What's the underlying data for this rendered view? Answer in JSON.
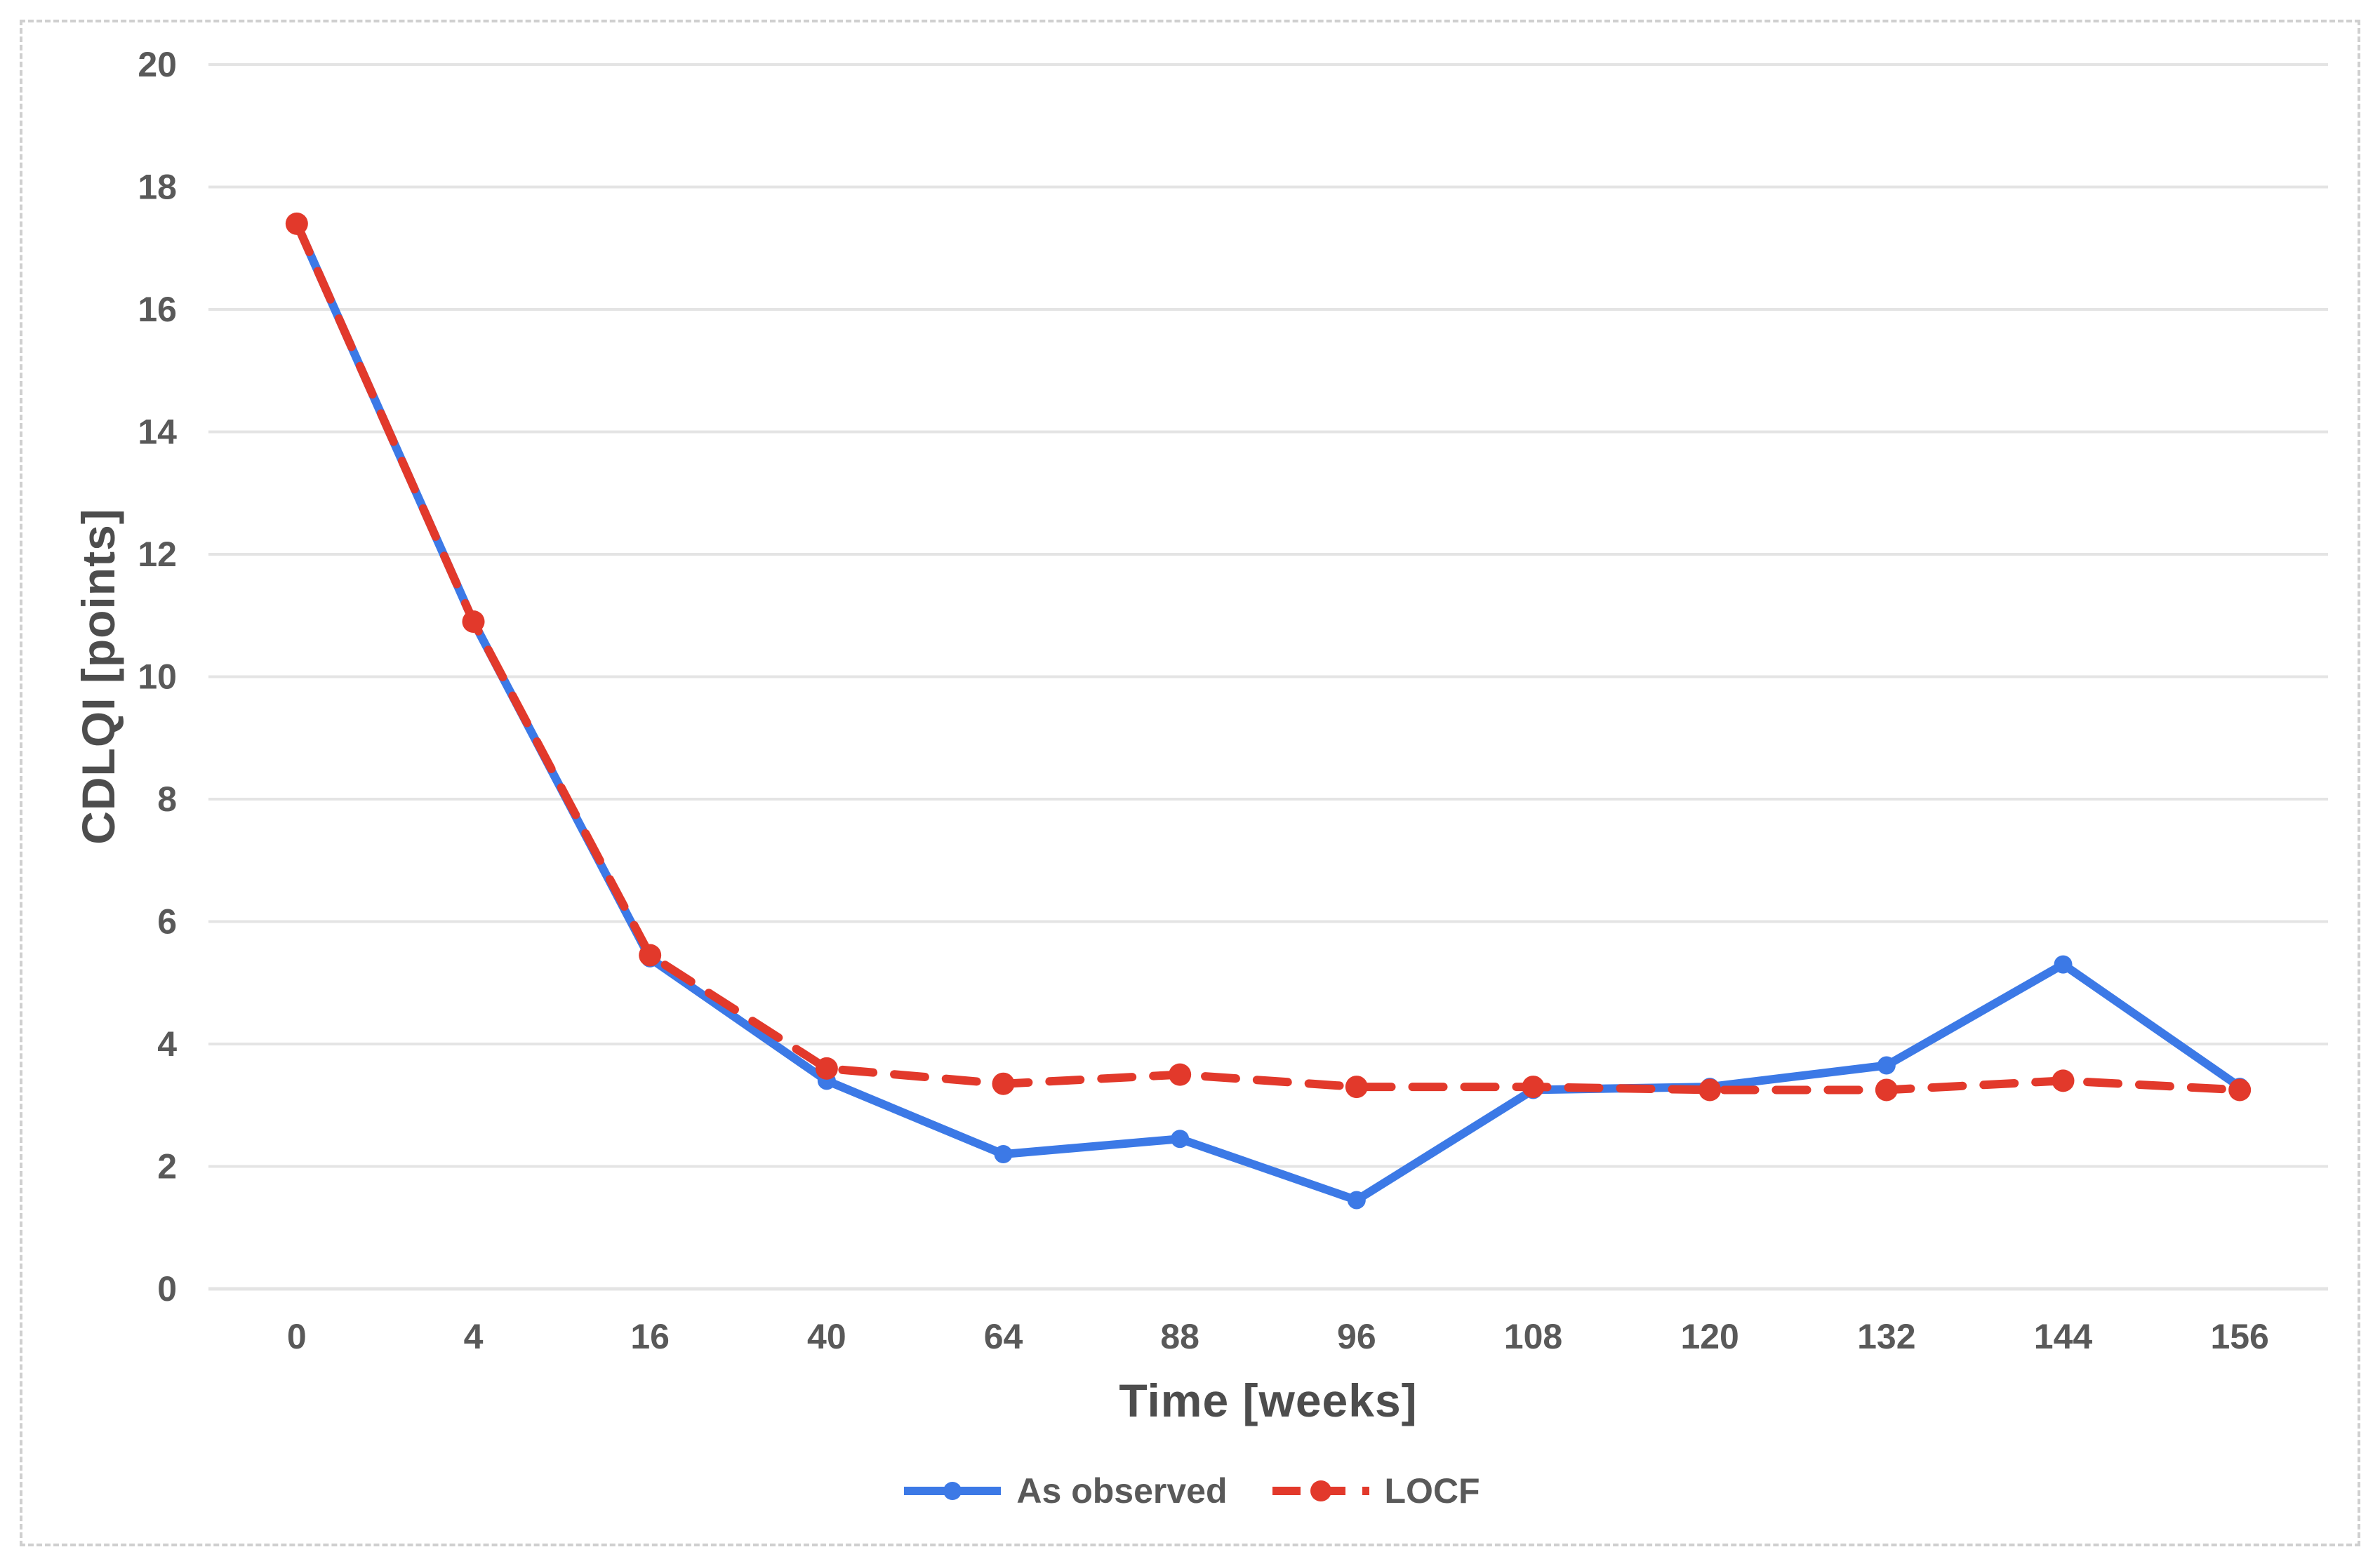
{
  "figure": {
    "background_color": "#ffffff",
    "border_color": "#cfcfcf"
  },
  "chart_data": {
    "type": "line",
    "title": "",
    "xlabel": "Time [weeks]",
    "ylabel": "CDLQI [points]",
    "categories": [
      "0",
      "4",
      "16",
      "40",
      "64",
      "88",
      "96",
      "108",
      "120",
      "132",
      "144",
      "156"
    ],
    "ylim": [
      0,
      20
    ],
    "ytick_step": 2,
    "ytick_labels": [
      "0",
      "2",
      "4",
      "6",
      "8",
      "10",
      "12",
      "14",
      "16",
      "18",
      "20"
    ],
    "grid": true,
    "grid_color": "#e4e4e4",
    "axis_text_color": "#595959",
    "legend_position": "bottom-center",
    "series": [
      {
        "name": "As observed",
        "color": "#3C79E6",
        "line_style": "solid",
        "marker": "circle",
        "values": [
          17.4,
          10.9,
          5.4,
          3.4,
          2.2,
          2.45,
          1.45,
          3.25,
          3.3,
          3.65,
          5.3,
          3.3
        ]
      },
      {
        "name": "LOCF",
        "color": "#E2392B",
        "line_style": "dashed",
        "marker": "circle",
        "values": [
          17.4,
          10.9,
          5.45,
          3.6,
          3.35,
          3.5,
          3.3,
          3.3,
          3.25,
          3.25,
          3.4,
          3.25
        ]
      }
    ]
  }
}
